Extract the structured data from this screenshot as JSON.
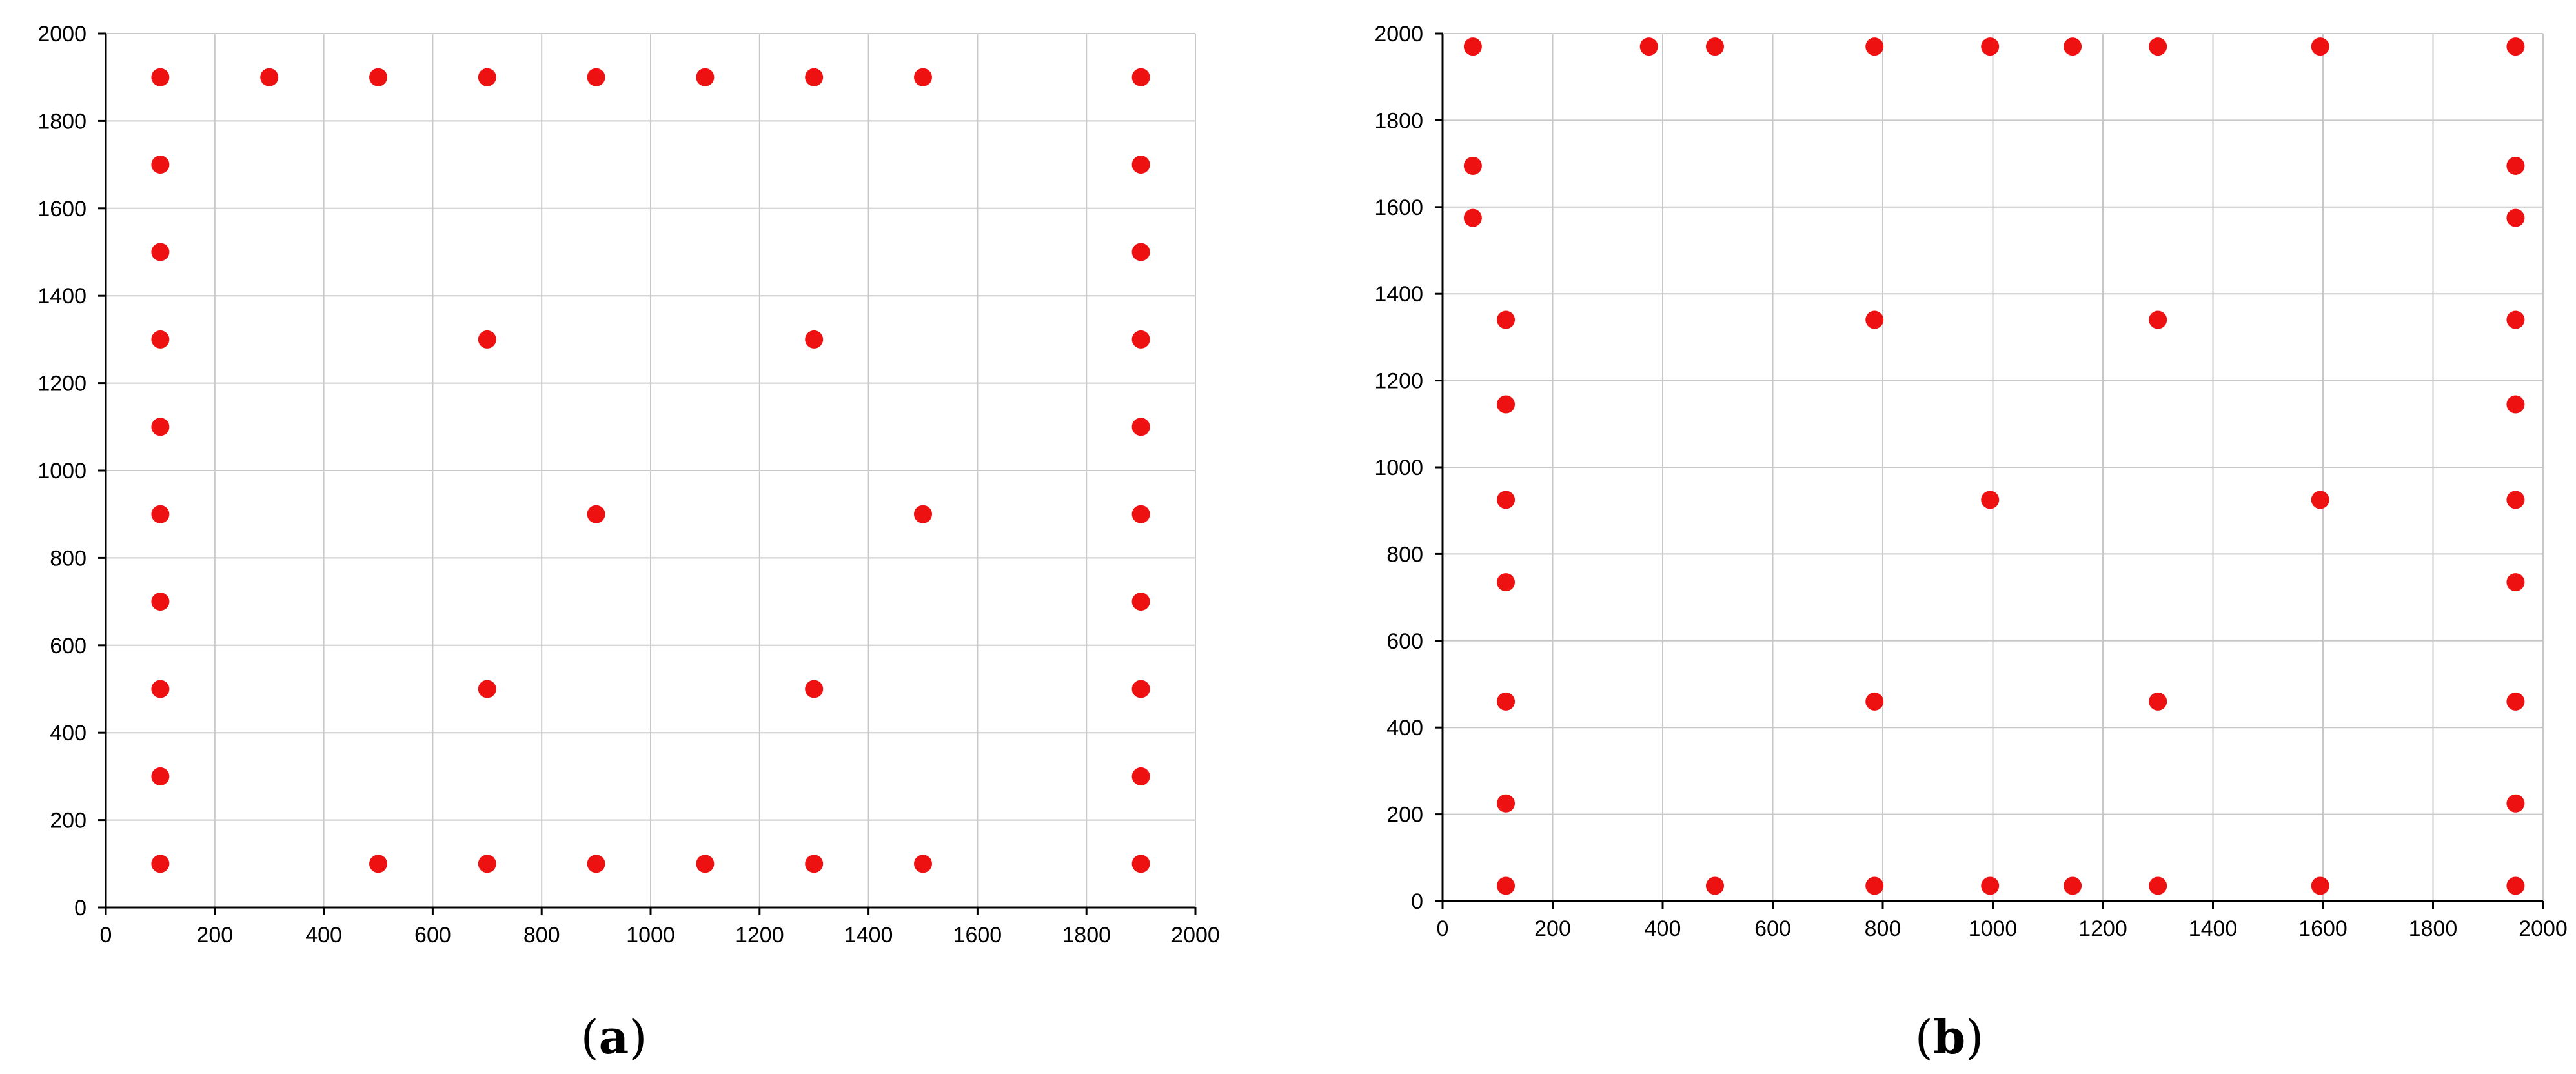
{
  "chart_data": [
    {
      "type": "scatter",
      "panel_label": "a",
      "xlim": [
        0,
        2000
      ],
      "ylim": [
        0,
        2000
      ],
      "xticks": [
        0,
        200,
        400,
        600,
        800,
        1000,
        1200,
        1400,
        1600,
        1800,
        2000
      ],
      "yticks": [
        0,
        200,
        400,
        600,
        800,
        1000,
        1200,
        1400,
        1600,
        1800,
        2000
      ],
      "grid": true,
      "marker_color": "#ee1111",
      "series": [
        {
          "points": [
            [
              100,
              1900
            ],
            [
              300,
              1900
            ],
            [
              500,
              1900
            ],
            [
              700,
              1900
            ],
            [
              900,
              1900
            ],
            [
              1100,
              1900
            ],
            [
              1300,
              1900
            ],
            [
              1500,
              1900
            ],
            [
              1900,
              1900
            ],
            [
              100,
              1700
            ],
            [
              100,
              1500
            ],
            [
              100,
              1300
            ],
            [
              100,
              1100
            ],
            [
              100,
              900
            ],
            [
              100,
              700
            ],
            [
              100,
              500
            ],
            [
              100,
              300
            ],
            [
              100,
              100
            ],
            [
              1900,
              1700
            ],
            [
              1900,
              1500
            ],
            [
              1900,
              1300
            ],
            [
              1900,
              1100
            ],
            [
              1900,
              900
            ],
            [
              1900,
              700
            ],
            [
              1900,
              500
            ],
            [
              1900,
              300
            ],
            [
              1900,
              100
            ],
            [
              500,
              100
            ],
            [
              700,
              100
            ],
            [
              900,
              100
            ],
            [
              1100,
              100
            ],
            [
              1300,
              100
            ],
            [
              1500,
              100
            ],
            [
              700,
              1300
            ],
            [
              1300,
              1300
            ],
            [
              900,
              900
            ],
            [
              1500,
              900
            ],
            [
              700,
              500
            ],
            [
              1300,
              500
            ]
          ]
        }
      ]
    },
    {
      "type": "scatter",
      "panel_label": "b",
      "xlim": [
        0,
        2000
      ],
      "ylim": [
        0,
        2000
      ],
      "xticks": [
        0,
        200,
        400,
        600,
        800,
        1000,
        1200,
        1400,
        1600,
        1800,
        2000
      ],
      "yticks": [
        0,
        200,
        400,
        600,
        800,
        1000,
        1200,
        1400,
        1600,
        1800,
        2000
      ],
      "grid": true,
      "marker_color": "#ee1111",
      "series": [
        {
          "points": [
            [
              55,
              1970
            ],
            [
              375,
              1970
            ],
            [
              495,
              1970
            ],
            [
              785,
              1970
            ],
            [
              995,
              1970
            ],
            [
              1145,
              1970
            ],
            [
              1300,
              1970
            ],
            [
              1595,
              1970
            ],
            [
              1950,
              1970
            ],
            [
              55,
              1695
            ],
            [
              55,
              1575
            ],
            [
              115,
              1340
            ],
            [
              115,
              1145
            ],
            [
              115,
              925
            ],
            [
              115,
              735
            ],
            [
              115,
              460
            ],
            [
              115,
              225
            ],
            [
              115,
              35
            ],
            [
              785,
              1340
            ],
            [
              1300,
              1340
            ],
            [
              995,
              925
            ],
            [
              1595,
              925
            ],
            [
              785,
              460
            ],
            [
              1300,
              460
            ],
            [
              495,
              35
            ],
            [
              785,
              35
            ],
            [
              995,
              35
            ],
            [
              1145,
              35
            ],
            [
              1300,
              35
            ],
            [
              1595,
              35
            ],
            [
              1950,
              1695
            ],
            [
              1950,
              1575
            ],
            [
              1950,
              1340
            ],
            [
              1950,
              1145
            ],
            [
              1950,
              925
            ],
            [
              1950,
              735
            ],
            [
              1950,
              460
            ],
            [
              1950,
              225
            ],
            [
              1950,
              35
            ]
          ]
        }
      ]
    }
  ]
}
